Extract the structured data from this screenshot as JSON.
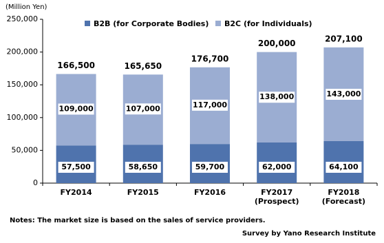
{
  "chart_data": {
    "type": "stacked_bar",
    "y_label": "(Million Yen)",
    "categories": [
      "FY2014",
      "FY2015",
      "FY2016",
      "FY2017\n(Prospect)",
      "FY2018\n(Forecast)"
    ],
    "series": [
      {
        "name": "B2B (for Corporate Bodies)",
        "color": "#4f73ad",
        "values": [
          57500,
          58650,
          59700,
          62000,
          64100
        ],
        "value_labels": [
          "57,500",
          "58,650",
          "59,700",
          "62,000",
          "64,100"
        ]
      },
      {
        "name": "B2C (for Individuals)",
        "color": "#9badd2",
        "values": [
          109000,
          107000,
          117000,
          138000,
          143000
        ],
        "value_labels": [
          "109,000",
          "107,000",
          "117,000",
          "138,000",
          "143,000"
        ]
      }
    ],
    "totals": [
      166500,
      165650,
      176700,
      200000,
      207100
    ],
    "total_labels": [
      "166,500",
      "165,650",
      "176,700",
      "200,000",
      "207,100"
    ],
    "ylim": [
      0,
      250000
    ],
    "yticks": [
      0,
      {
        "value": 50000,
        "label": "50,000"
      },
      {
        "value": 100000,
        "label": "100,000"
      },
      {
        "value": 150000,
        "label": "150,000"
      },
      {
        "value": 200000,
        "label": "200,000"
      },
      {
        "value": 250000,
        "label": "250,000"
      }
    ],
    "legend_position": "top",
    "notes": "Notes: The market size is based on the sales of service providers.",
    "source": "Survey by Yano Research Institute"
  }
}
